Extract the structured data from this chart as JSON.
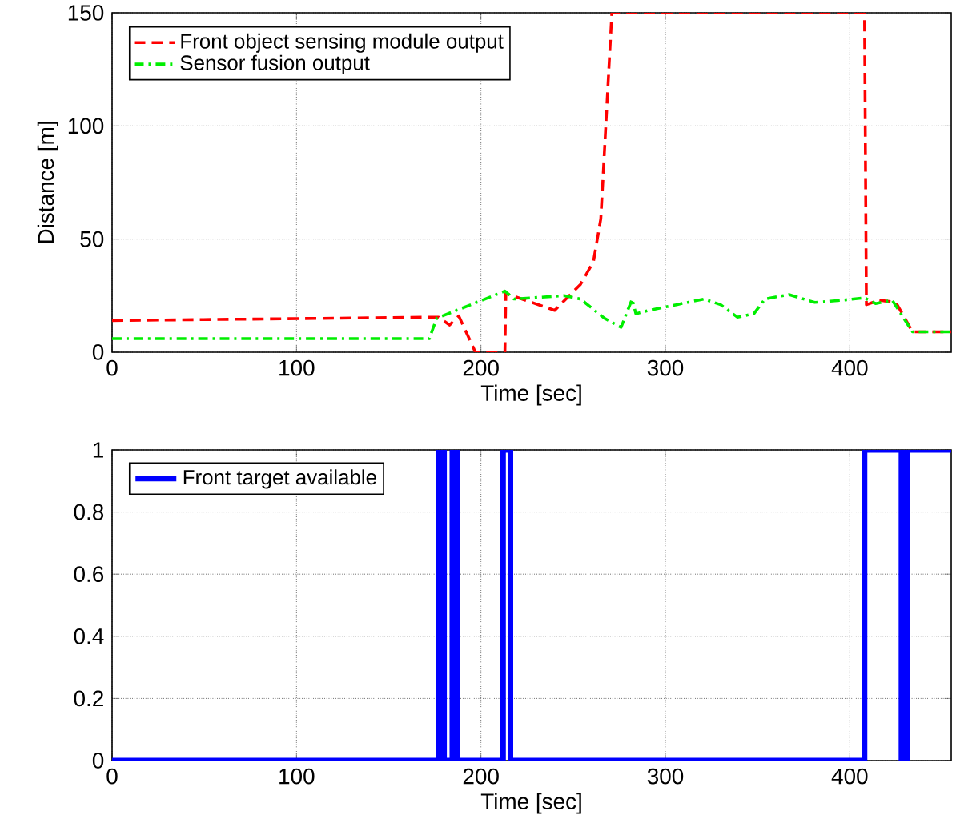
{
  "chart_data": [
    {
      "type": "line",
      "xlabel": "Time [sec]",
      "ylabel": "Distance [m]",
      "xlim": [
        0,
        455
      ],
      "ylim": [
        0,
        150
      ],
      "xticks": [
        0,
        100,
        200,
        300,
        400
      ],
      "yticks": [
        0,
        50,
        100,
        150
      ],
      "grid": true,
      "legend": "top left",
      "series": [
        {
          "name": "Front object sensing module output",
          "color": "#ff0000",
          "line_style": "dashed",
          "x": [
            0,
            177,
            183,
            188,
            197,
            213,
            213.5,
            240,
            254,
            261,
            265,
            271,
            408,
            409,
            416,
            425,
            434,
            455
          ],
          "values": [
            14,
            15.5,
            12,
            16,
            0,
            0,
            26,
            18.5,
            30,
            40,
            59,
            150,
            150,
            21,
            23,
            22,
            9,
            9
          ]
        },
        {
          "name": "Sensor fusion output",
          "color": "#00ee00",
          "line_style": "dashdot",
          "x": [
            0,
            172,
            176,
            213,
            218,
            245,
            254,
            267,
            276,
            282,
            284,
            291,
            306,
            321,
            330,
            339,
            348,
            354,
            367,
            381,
            396,
            408,
            414,
            423,
            434,
            455
          ],
          "values": [
            6,
            6,
            15,
            27,
            23.5,
            25,
            23.5,
            15,
            11,
            23.5,
            17,
            18.5,
            21,
            23.5,
            21,
            15.5,
            17,
            23.5,
            25.5,
            22,
            23,
            24,
            21.5,
            23,
            9,
            9
          ]
        }
      ]
    },
    {
      "type": "step",
      "xlabel": "Time [sec]",
      "xlim": [
        0,
        455
      ],
      "ylim": [
        0,
        1
      ],
      "xticks": [
        0,
        100,
        200,
        300,
        400
      ],
      "yticks": [
        0,
        0.2,
        0.4,
        0.6,
        0.8,
        1
      ],
      "grid": true,
      "legend": "top left",
      "series": [
        {
          "name": "Front target available",
          "color": "#0000ff",
          "line_style": "solid",
          "x": [
            0,
            177,
            180,
            184.5,
            187,
            212,
            216,
            408,
            428,
            431,
            455
          ],
          "values": [
            0,
            1,
            0,
            1,
            0,
            1,
            0,
            1,
            0,
            1,
            1
          ]
        }
      ]
    }
  ]
}
